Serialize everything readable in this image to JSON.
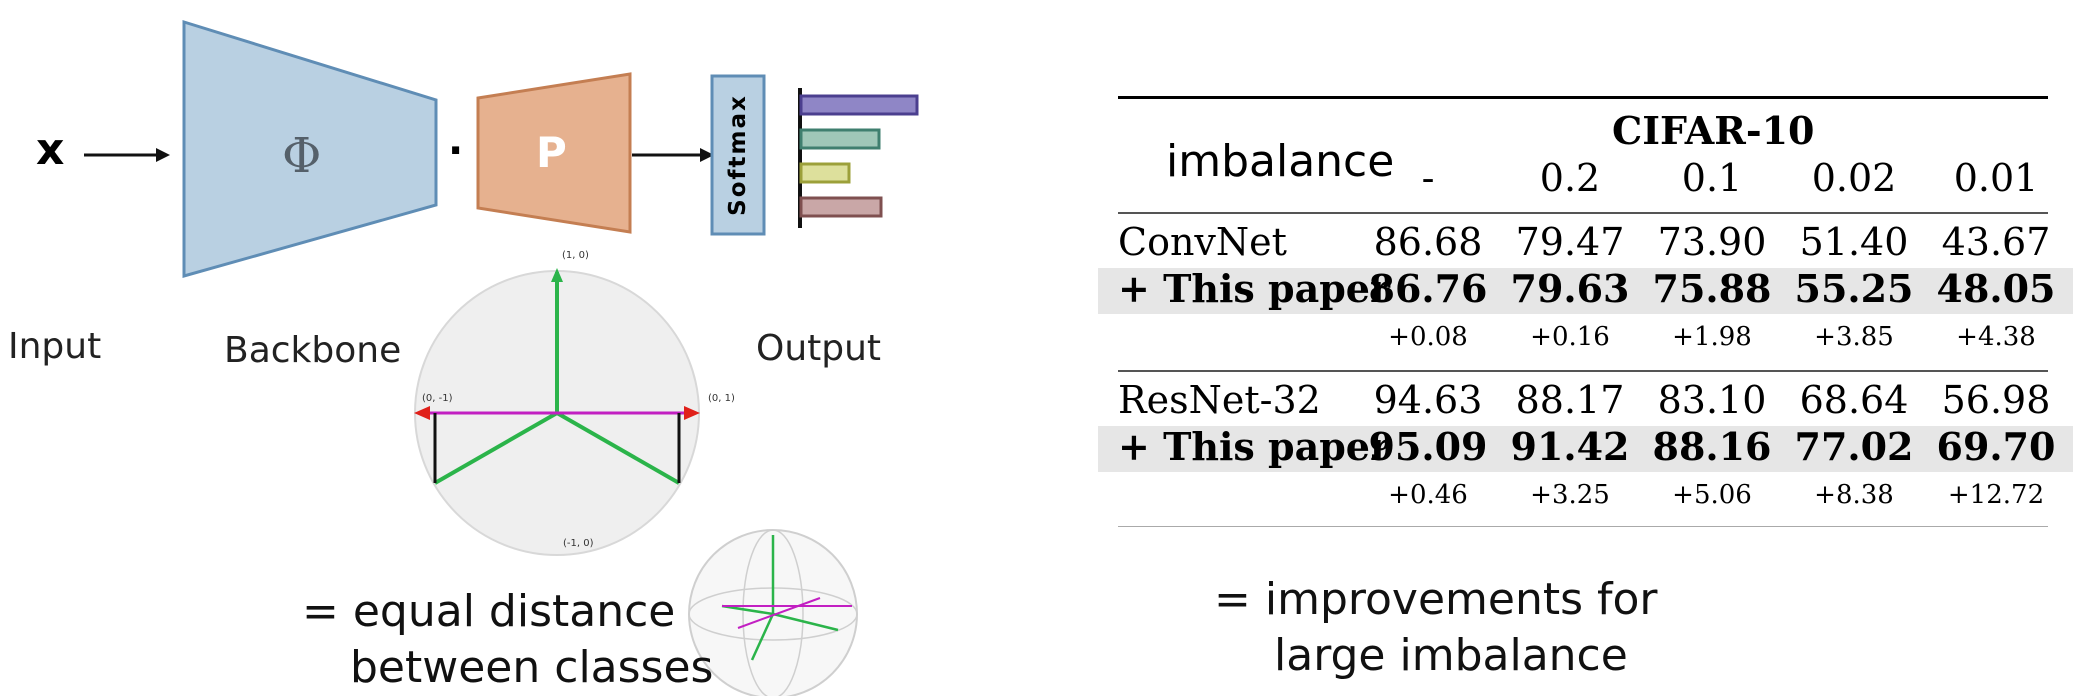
{
  "diagram": {
    "input_symbol": "x",
    "input_label": "Input",
    "backbone_symbol": "Φ",
    "backbone_label": "Backbone",
    "dot": "·",
    "projection_symbol": "P",
    "softmax_label": "Softmax",
    "output_label": "Output",
    "circle_labels": {
      "top": "(1, 0)",
      "left": "(0, -1)",
      "right": "(0, 1)",
      "bottom": "(-1, 0)"
    },
    "note": [
      "= equal distance",
      "between classes"
    ]
  },
  "table": {
    "dataset": "CIFAR-10",
    "imbalance_label": "imbalance",
    "columns": [
      "-",
      "0.2",
      "0.1",
      "0.02",
      "0.01"
    ],
    "rows": [
      {
        "label": "ConvNet",
        "values": [
          "86.68",
          "79.47",
          "73.90",
          "51.40",
          "43.67"
        ],
        "style": "normal"
      },
      {
        "label": "+ This paper",
        "values": [
          "86.76",
          "79.63",
          "75.88",
          "55.25",
          "48.05"
        ],
        "style": "bold"
      },
      {
        "label": "",
        "values": [
          "+0.08",
          "+0.16",
          "+1.98",
          "+3.85",
          "+4.38"
        ],
        "style": "small"
      },
      {
        "label": "ResNet-32",
        "values": [
          "94.63",
          "88.17",
          "83.10",
          "68.64",
          "56.98"
        ],
        "style": "normal"
      },
      {
        "label": "+ This paper",
        "values": [
          "95.09",
          "91.42",
          "88.16",
          "77.02",
          "69.70"
        ],
        "style": "bold"
      },
      {
        "label": "",
        "values": [
          "+0.46",
          "+3.25",
          "+5.06",
          "+8.38",
          "+12.72"
        ],
        "style": "small"
      }
    ],
    "note": [
      "= improvements for",
      "large imbalance"
    ]
  }
}
